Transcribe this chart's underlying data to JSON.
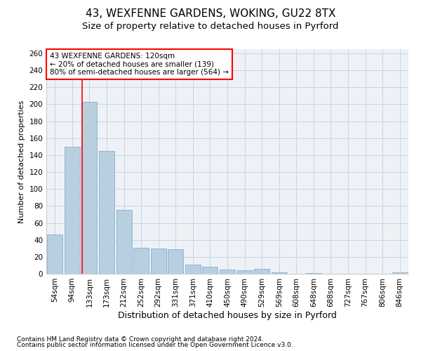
{
  "title1": "43, WEXFENNE GARDENS, WOKING, GU22 8TX",
  "title2": "Size of property relative to detached houses in Pyrford",
  "xlabel": "Distribution of detached houses by size in Pyrford",
  "ylabel": "Number of detached properties",
  "categories": [
    "54sqm",
    "94sqm",
    "133sqm",
    "173sqm",
    "212sqm",
    "252sqm",
    "292sqm",
    "331sqm",
    "371sqm",
    "410sqm",
    "450sqm",
    "490sqm",
    "529sqm",
    "569sqm",
    "608sqm",
    "648sqm",
    "688sqm",
    "727sqm",
    "767sqm",
    "806sqm",
    "846sqm"
  ],
  "values": [
    46,
    150,
    203,
    145,
    75,
    31,
    30,
    29,
    11,
    8,
    5,
    4,
    6,
    2,
    0,
    1,
    0,
    0,
    0,
    0,
    2
  ],
  "bar_color": "#b8cfe0",
  "bar_edge_color": "#89aece",
  "annotation_line1": "43 WEXFENNE GARDENS: 120sqm",
  "annotation_line2": "← 20% of detached houses are smaller (139)",
  "annotation_line3": "80% of semi-detached houses are larger (564) →",
  "redline_x": 1.575,
  "ylim": [
    0,
    265
  ],
  "yticks": [
    0,
    20,
    40,
    60,
    80,
    100,
    120,
    140,
    160,
    180,
    200,
    220,
    240,
    260
  ],
  "footnote1": "Contains HM Land Registry data © Crown copyright and database right 2024.",
  "footnote2": "Contains public sector information licensed under the Open Government Licence v3.0.",
  "bg_color": "#eef2f7",
  "grid_color": "#c5d5e5",
  "title1_fontsize": 11,
  "title2_fontsize": 9.5,
  "xlabel_fontsize": 9,
  "ylabel_fontsize": 8,
  "tick_fontsize": 7.5,
  "annotation_fontsize": 7.5,
  "footnote_fontsize": 6.5
}
